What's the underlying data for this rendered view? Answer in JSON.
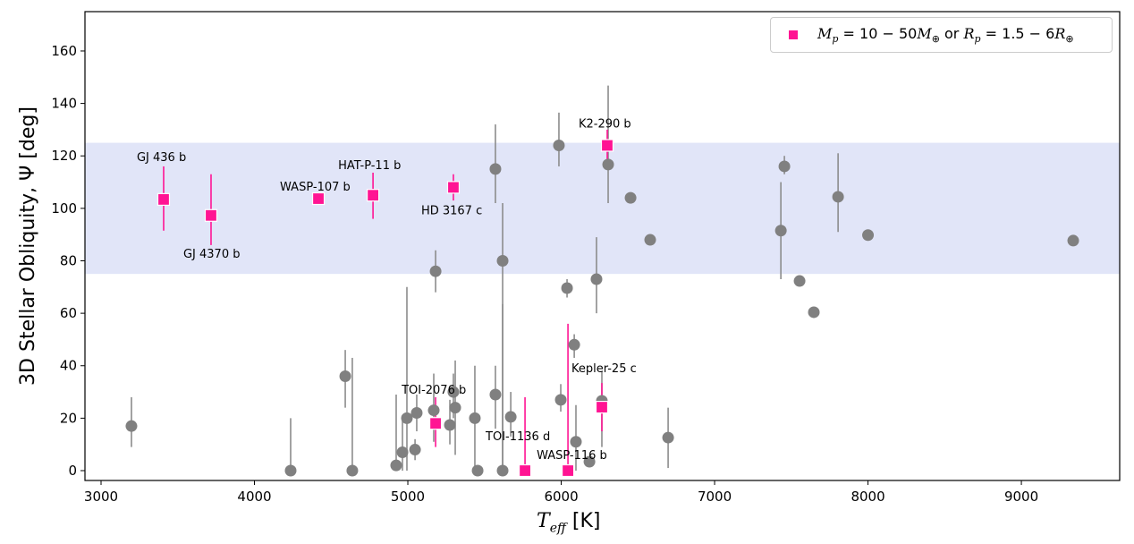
{
  "chart_data": {
    "type": "scatter",
    "xlabel": {
      "symbol": "T",
      "subscript": "eff",
      "unit": "[K]"
    },
    "ylabel": "3D Stellar Obliquity, Ψ [deg]",
    "xlim": [
      2895,
      9641
    ],
    "ylim": [
      -3.75,
      175
    ],
    "xticks": [
      3000,
      4000,
      5000,
      6000,
      7000,
      8000,
      9000
    ],
    "yticks": [
      0,
      20,
      40,
      60,
      80,
      100,
      120,
      140,
      160
    ],
    "grid": false,
    "shaded_band": {
      "y_from": 75,
      "y_to": 125,
      "color": "#e1e5f8"
    },
    "legend": {
      "placement": "top-right",
      "entries": [
        {
          "series": "highlight",
          "parts": {
            "mp": "M",
            "mp_sub": "p",
            "eq1": " = 10 − 50",
            "me": "M",
            "me_sub": "⊕",
            "or": " or ",
            "rp": "R",
            "rp_sub": "p",
            "eq2": " = 1.5 − 6",
            "re": "R",
            "re_sub": "⊕"
          }
        }
      ]
    },
    "series": [
      {
        "id": "other",
        "marker": "circle",
        "color": "#808080",
        "points": [
          {
            "x": 3198,
            "y": 17,
            "lo": 9,
            "hi": 28
          },
          {
            "x": 4236,
            "y": 0,
            "lo": 0,
            "hi": 20
          },
          {
            "x": 4592,
            "y": 36,
            "lo": 24,
            "hi": 46
          },
          {
            "x": 4638,
            "y": 0,
            "lo": 0,
            "hi": 43
          },
          {
            "x": 4924,
            "y": 2,
            "lo": 0,
            "hi": 29
          },
          {
            "x": 4965,
            "y": 7,
            "lo": 0,
            "hi": 21
          },
          {
            "x": 4994,
            "y": 20,
            "lo": 0,
            "hi": 70
          },
          {
            "x": 5047,
            "y": 8,
            "lo": 4,
            "hi": 12
          },
          {
            "x": 5058,
            "y": 22,
            "lo": 15,
            "hi": 29
          },
          {
            "x": 5169,
            "y": 23,
            "lo": 11,
            "hi": 37
          },
          {
            "x": 5181,
            "y": 76,
            "lo": 68,
            "hi": 84
          },
          {
            "x": 5274,
            "y": 17.4,
            "lo": 10,
            "hi": 27
          },
          {
            "x": 5297,
            "y": 30,
            "lo": 20,
            "hi": 37
          },
          {
            "x": 5309,
            "y": 24,
            "lo": 6,
            "hi": 42
          },
          {
            "x": 5437,
            "y": 20,
            "lo": 0,
            "hi": 40
          },
          {
            "x": 5455,
            "y": 0,
            "lo": 0,
            "hi": 0
          },
          {
            "x": 5571,
            "y": 29,
            "lo": 16,
            "hi": 40
          },
          {
            "x": 5571,
            "y": 115,
            "lo": 102,
            "hi": 132
          },
          {
            "x": 5618,
            "y": 0,
            "lo": 0,
            "hi": 63.5
          },
          {
            "x": 5618,
            "y": 80,
            "lo": 0,
            "hi": 102
          },
          {
            "x": 5671,
            "y": 20.5,
            "lo": 13,
            "hi": 30
          },
          {
            "x": 5985,
            "y": 124,
            "lo": 116,
            "hi": 136.5
          },
          {
            "x": 5997,
            "y": 27,
            "lo": 22.5,
            "hi": 33
          },
          {
            "x": 6038,
            "y": 69.6,
            "lo": 66,
            "hi": 73
          },
          {
            "x": 6085,
            "y": 48,
            "lo": 43,
            "hi": 52
          },
          {
            "x": 6096,
            "y": 11,
            "lo": 0,
            "hi": 25
          },
          {
            "x": 6184,
            "y": 3.4,
            "lo": 3.4,
            "hi": 3.4
          },
          {
            "x": 6230,
            "y": 73,
            "lo": 60,
            "hi": 89
          },
          {
            "x": 6265,
            "y": 26.6,
            "lo": 9,
            "hi": 38
          },
          {
            "x": 6306,
            "y": 116.7,
            "lo": 102,
            "hi": 146.8
          },
          {
            "x": 6452,
            "y": 104,
            "lo": 104,
            "hi": 104
          },
          {
            "x": 6580,
            "y": 88,
            "lo": 88,
            "hi": 88
          },
          {
            "x": 6697,
            "y": 12.6,
            "lo": 1,
            "hi": 24
          },
          {
            "x": 7432,
            "y": 91.5,
            "lo": 73,
            "hi": 110
          },
          {
            "x": 7455,
            "y": 116,
            "lo": 113,
            "hi": 120
          },
          {
            "x": 7554,
            "y": 72.3,
            "lo": 72.3,
            "hi": 72.3
          },
          {
            "x": 7647,
            "y": 60.4,
            "lo": 60.4,
            "hi": 60.4
          },
          {
            "x": 7805,
            "y": 104.4,
            "lo": 91,
            "hi": 121
          },
          {
            "x": 8000,
            "y": 89.8,
            "lo": 89.8,
            "hi": 89.8
          },
          {
            "x": 9338,
            "y": 87.7,
            "lo": 87.7,
            "hi": 87.7
          }
        ]
      },
      {
        "id": "highlight",
        "marker": "square",
        "color": "#ff1493",
        "points": [
          {
            "label": "GJ 436 b",
            "x": 3408,
            "y": 103.4,
            "lo": 91.5,
            "hi": 116
          },
          {
            "label": "GJ 4370 b",
            "x": 3717,
            "y": 97.3,
            "lo": 86,
            "hi": 113
          },
          {
            "label": "WASP-107 b",
            "x": 4417,
            "y": 103.7,
            "lo": 103.7,
            "hi": 103.7
          },
          {
            "label": "HAT-P-11 b",
            "x": 4773,
            "y": 105,
            "lo": 96,
            "hi": 113.6
          },
          {
            "label": "HD 3167 c",
            "x": 5297,
            "y": 108,
            "lo": 103,
            "hi": 113
          },
          {
            "label": "K2-290 b",
            "x": 6300,
            "y": 124,
            "lo": 118,
            "hi": 130
          },
          {
            "label": "TOI-2076 b",
            "x": 5181,
            "y": 18,
            "lo": 9,
            "hi": 28
          },
          {
            "label": "TOI-1136 d",
            "x": 5764,
            "y": 0,
            "lo": 0,
            "hi": 28
          },
          {
            "label": "WASP-116 b",
            "x": 6044,
            "y": 0,
            "lo": 0,
            "hi": 56
          },
          {
            "label": "Kepler-25 c",
            "x": 6265,
            "y": 24.2,
            "lo": 15,
            "hi": 33.4
          }
        ]
      }
    ]
  }
}
